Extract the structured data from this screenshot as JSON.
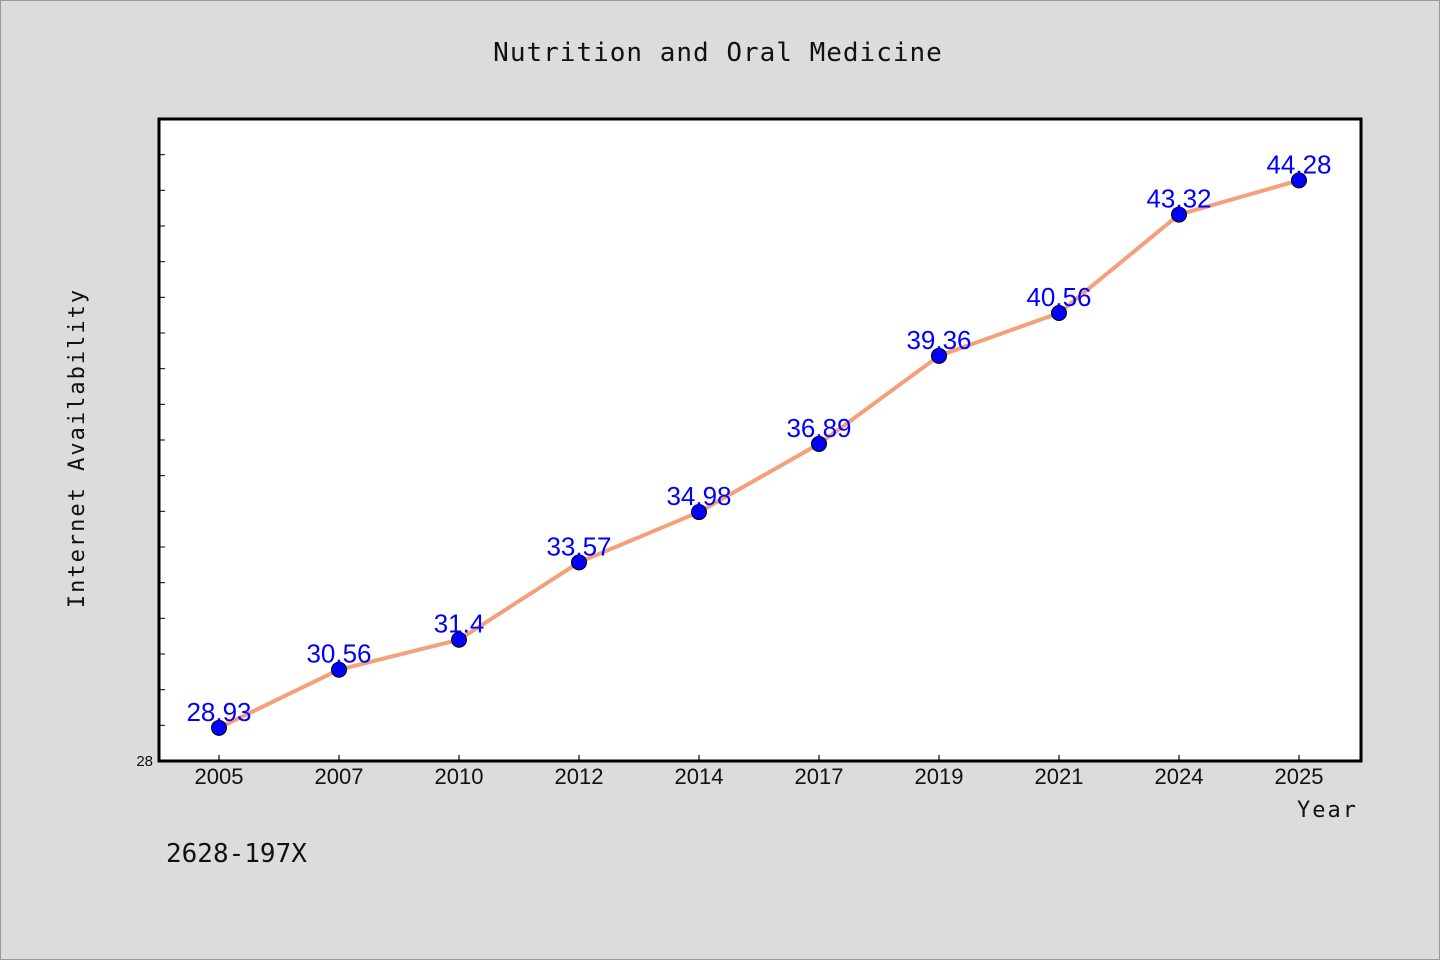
{
  "chart_data": {
    "type": "line",
    "title": "Nutrition and Oral Medicine",
    "xlabel": "Year",
    "ylabel": "Internet Availability",
    "categories": [
      "2005",
      "2007",
      "2010",
      "2012",
      "2014",
      "2017",
      "2019",
      "2021",
      "2024",
      "2025"
    ],
    "series": [
      {
        "values": [
          28.93,
          30.56,
          31.4,
          33.57,
          34.98,
          36.89,
          39.36,
          40.56,
          43.32,
          44.28
        ]
      }
    ],
    "data_labels": [
      "28.93",
      "30.56",
      "31.4",
      "33.57",
      "34.98",
      "36.89",
      "39.36",
      "40.56",
      "43.32",
      "44.28"
    ],
    "ytick_labels": [
      "28"
    ],
    "ylim": [
      28,
      46
    ],
    "grid": false,
    "legend": "none",
    "colors": {
      "line": "#f4a07a",
      "marker": "#0000ff",
      "data_label": "#0000ff",
      "plot_background": "#ffffff",
      "page_background": "#dcdcdc"
    }
  },
  "footnote": "2628-197X"
}
